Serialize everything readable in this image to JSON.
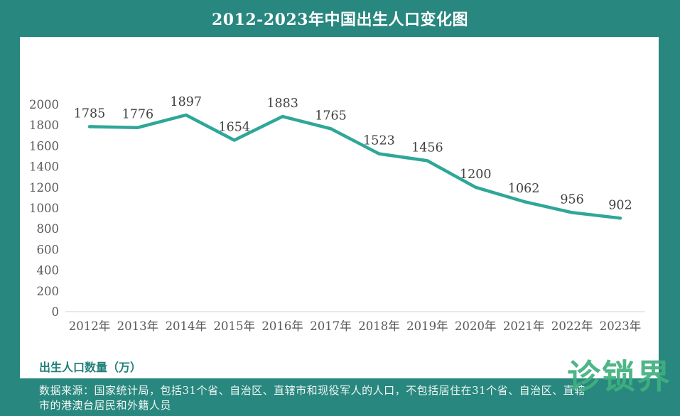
{
  "header": {
    "title": "2012-2023年中国出生人口变化图"
  },
  "chart_data": {
    "type": "line",
    "title": "2012-2023年中国出生人口变化图",
    "categories": [
      "2012年",
      "2013年",
      "2014年",
      "2015年",
      "2016年",
      "2017年",
      "2018年",
      "2019年",
      "2020年",
      "2021年",
      "2022年",
      "2023年"
    ],
    "values": [
      1785,
      1776,
      1897,
      1654,
      1883,
      1765,
      1523,
      1456,
      1200,
      1062,
      956,
      902
    ],
    "series_name": "出生人口数量（万）",
    "ylim": [
      0,
      2000
    ],
    "ytick_step": 200,
    "yticks": [
      0,
      200,
      400,
      600,
      800,
      1000,
      1200,
      1400,
      1600,
      1800,
      2000
    ],
    "grid": false,
    "legend": "none",
    "data_labels": true
  },
  "caption": {
    "text": "出生人口数量（万）"
  },
  "footer": {
    "line1": "数据来源：国家统计局，包括31个省、自治区、直辖市和现役军人的人口，不包括居住在31个省、自治区、直辖",
    "line2": "市的港澳台居民和外籍人员"
  },
  "watermark": {
    "text": "诊锁界"
  },
  "colors": {
    "background": "#28877f",
    "card": "#ffffff",
    "line": "#2ea797",
    "axis_line": "#d9d9d9",
    "tick_text": "#595959",
    "data_label_text": "#404040",
    "caption_text": "#21807a",
    "title_text": "#ffffff",
    "footer_text": "#f2f7f4",
    "watermark": "#40b07e"
  }
}
